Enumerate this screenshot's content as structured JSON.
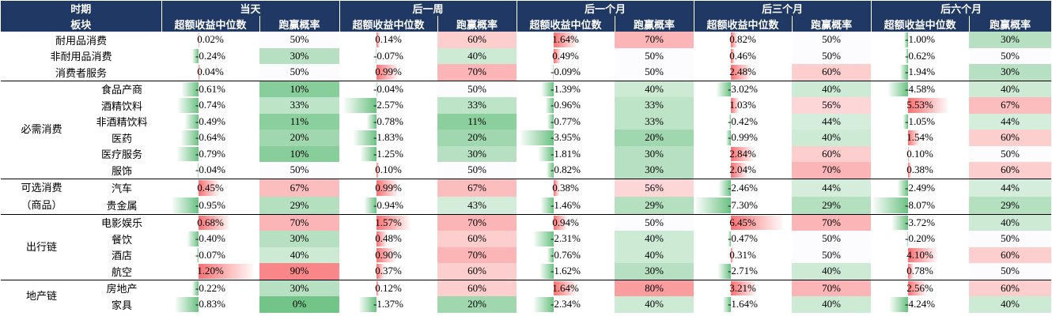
{
  "chart_data": {
    "type": "table",
    "header": {
      "period_label": "时期",
      "sector_label": "板块",
      "periods": [
        "当天",
        "后一周",
        "后一个月",
        "后三个月",
        "后六个月"
      ],
      "metric_a": "超额收益中位数",
      "metric_b": "跑赢概率"
    },
    "rows": [
      {
        "group": "",
        "label": "耐用品消费",
        "cells": [
          [
            "0.02%",
            "50%"
          ],
          [
            "0.14%",
            "60%"
          ],
          [
            "1.64%",
            "70%"
          ],
          [
            "0.82%",
            "50%"
          ],
          [
            "-1.00%",
            "30%"
          ]
        ]
      },
      {
        "group": "",
        "label": "非耐用品消费",
        "cells": [
          [
            "-0.24%",
            "30%"
          ],
          [
            "-0.07%",
            "40%"
          ],
          [
            "0.49%",
            "50%"
          ],
          [
            "0.46%",
            "50%"
          ],
          [
            "-0.62%",
            "50%"
          ]
        ]
      },
      {
        "group": "",
        "label": "消费者服务",
        "cells": [
          [
            "0.04%",
            "50%"
          ],
          [
            "0.99%",
            "70%"
          ],
          [
            "-0.09%",
            "50%"
          ],
          [
            "2.48%",
            "60%"
          ],
          [
            "-1.94%",
            "30%"
          ]
        ]
      },
      {
        "group": "必需消费",
        "label": "食品产商",
        "cells": [
          [
            "-0.61%",
            "10%"
          ],
          [
            "-0.04%",
            "50%"
          ],
          [
            "-1.39%",
            "40%"
          ],
          [
            "-3.02%",
            "40%"
          ],
          [
            "-4.58%",
            "40%"
          ]
        ]
      },
      {
        "group": "必需消费",
        "label": "酒精饮料",
        "cells": [
          [
            "-0.74%",
            "33%"
          ],
          [
            "-2.57%",
            "33%"
          ],
          [
            "-0.96%",
            "33%"
          ],
          [
            "1.03%",
            "56%"
          ],
          [
            "5.53%",
            "67%"
          ]
        ]
      },
      {
        "group": "必需消费",
        "label": "非酒精饮料",
        "cells": [
          [
            "-0.49%",
            "11%"
          ],
          [
            "-0.78%",
            "11%"
          ],
          [
            "-0.77%",
            "33%"
          ],
          [
            "-0.42%",
            "44%"
          ],
          [
            "-1.05%",
            "44%"
          ]
        ]
      },
      {
        "group": "必需消费",
        "label": "医药",
        "cells": [
          [
            "-0.64%",
            "20%"
          ],
          [
            "-1.83%",
            "20%"
          ],
          [
            "-3.95%",
            "20%"
          ],
          [
            "-0.99%",
            "40%"
          ],
          [
            "1.54%",
            "60%"
          ]
        ]
      },
      {
        "group": "必需消费",
        "label": "医疗服务",
        "cells": [
          [
            "-0.79%",
            "10%"
          ],
          [
            "-1.25%",
            "30%"
          ],
          [
            "-1.81%",
            "30%"
          ],
          [
            "2.84%",
            "60%"
          ],
          [
            "0.10%",
            "50%"
          ]
        ]
      },
      {
        "group": "必需消费",
        "label": "服饰",
        "cells": [
          [
            "-0.04%",
            "50%"
          ],
          [
            "0.10%",
            "50%"
          ],
          [
            "-0.82%",
            "30%"
          ],
          [
            "2.04%",
            "70%"
          ],
          [
            "0.38%",
            "60%"
          ]
        ]
      },
      {
        "group": "可选消费（商品）",
        "label": "汽车",
        "cells": [
          [
            "0.45%",
            "67%"
          ],
          [
            "0.99%",
            "67%"
          ],
          [
            "0.38%",
            "56%"
          ],
          [
            "-2.46%",
            "44%"
          ],
          [
            "-2.49%",
            "44%"
          ]
        ]
      },
      {
        "group": "可选消费（商品）",
        "label": "贵金属",
        "cells": [
          [
            "-0.95%",
            "29%"
          ],
          [
            "-0.94%",
            "43%"
          ],
          [
            "-1.46%",
            "29%"
          ],
          [
            "-7.30%",
            "29%"
          ],
          [
            "-8.07%",
            "29%"
          ]
        ]
      },
      {
        "group": "出行链",
        "label": "电影娱乐",
        "cells": [
          [
            "0.68%",
            "70%"
          ],
          [
            "1.57%",
            "70%"
          ],
          [
            "0.94%",
            "50%"
          ],
          [
            "6.45%",
            "70%"
          ],
          [
            "-3.72%",
            "40%"
          ]
        ]
      },
      {
        "group": "出行链",
        "label": "餐饮",
        "cells": [
          [
            "-0.40%",
            "30%"
          ],
          [
            "0.48%",
            "60%"
          ],
          [
            "-2.31%",
            "40%"
          ],
          [
            "-0.47%",
            "50%"
          ],
          [
            "-0.20%",
            "50%"
          ]
        ]
      },
      {
        "group": "出行链",
        "label": "酒店",
        "cells": [
          [
            "-0.07%",
            "40%"
          ],
          [
            "0.90%",
            "70%"
          ],
          [
            "-0.76%",
            "40%"
          ],
          [
            "0.31%",
            "50%"
          ],
          [
            "4.10%",
            "60%"
          ]
        ]
      },
      {
        "group": "出行链",
        "label": "航空",
        "cells": [
          [
            "1.20%",
            "90%"
          ],
          [
            "0.37%",
            "60%"
          ],
          [
            "-1.62%",
            "30%"
          ],
          [
            "-2.71%",
            "40%"
          ],
          [
            "0.78%",
            "50%"
          ]
        ]
      },
      {
        "group": "地产链",
        "label": "房地产",
        "cells": [
          [
            "-0.22%",
            "30%"
          ],
          [
            "0.12%",
            "60%"
          ],
          [
            "1.64%",
            "80%"
          ],
          [
            "3.21%",
            "70%"
          ],
          [
            "2.56%",
            "60%"
          ]
        ]
      },
      {
        "group": "地产链",
        "label": "家具",
        "cells": [
          [
            "-0.83%",
            "0%"
          ],
          [
            "-1.37%",
            "20%"
          ],
          [
            "-2.34%",
            "40%"
          ],
          [
            "-1.64%",
            "40%"
          ],
          [
            "-4.24%",
            "40%"
          ]
        ]
      }
    ],
    "groups": [
      {
        "label": "必需消费",
        "start": 3,
        "span": 6
      },
      {
        "label": "可选消费",
        "label2": "（商品）",
        "start": 9,
        "span": 2
      },
      {
        "label": "出行链",
        "start": 11,
        "span": 4
      },
      {
        "label": "地产链",
        "start": 15,
        "span": 2
      }
    ],
    "bar_max_by_period": [
      1.3,
      2.8,
      4.2,
      7.5,
      8.3
    ],
    "colors": {
      "header": "#1f3864",
      "positive": "#f8696b",
      "negative": "#63be7b"
    }
  }
}
